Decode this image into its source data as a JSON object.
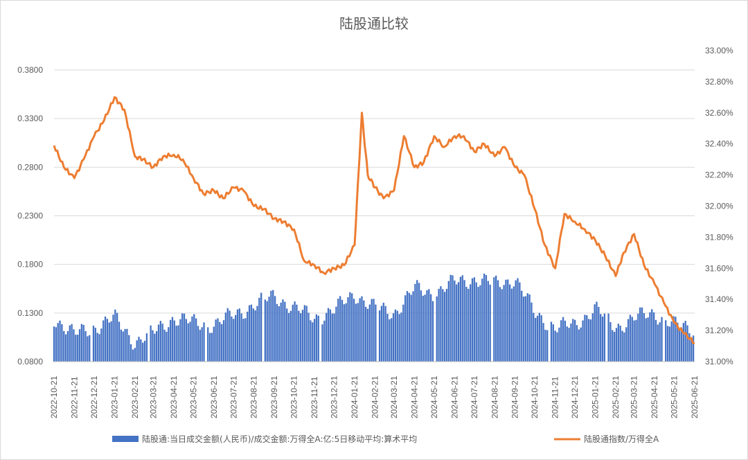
{
  "chart_data": {
    "type": "bar+line",
    "title": "陆股通比较",
    "x_tick_labels": [
      "2022-10-21",
      "2022-11-21",
      "2022-12-21",
      "2023-01-21",
      "2023-02-21",
      "2023-03-21",
      "2023-04-21",
      "2023-05-21",
      "2023-06-21",
      "2023-07-21",
      "2023-08-21",
      "2023-09-21",
      "2023-10-21",
      "2023-11-21",
      "2023-12-21",
      "2024-01-21",
      "2024-02-21",
      "2024-03-21",
      "2024-04-21",
      "2024-05-21",
      "2024-06-21",
      "2024-07-21",
      "2024-08-21",
      "2024-09-21",
      "2024-10-21",
      "2024-11-21",
      "2024-12-21",
      "2025-01-21",
      "2025-02-21",
      "2025-03-21",
      "2025-04-21",
      "2025-05-21",
      "2025-06-21"
    ],
    "y_left": {
      "min": 0.08,
      "max": 0.38,
      "tick_labels": [
        "0.0800",
        "0.1300",
        "0.1800",
        "0.2300",
        "0.2800",
        "0.3300",
        "0.3800"
      ]
    },
    "y_right": {
      "min": 31.0,
      "max": 33.0,
      "tick_labels": [
        "31.00%",
        "31.20%",
        "31.40%",
        "31.60%",
        "31.80%",
        "32.00%",
        "32.20%",
        "32.40%",
        "32.60%",
        "32.80%",
        "33.00%"
      ]
    },
    "colors": {
      "bar": "#4472c4",
      "line": "#ed7d31"
    },
    "legend": {
      "position": "bottom"
    },
    "grid": "horizontal",
    "series": [
      {
        "name": "陆股通:当日成交金额(人民币)/成交金额:万得全A:亿:5日移动平均:算术平均",
        "kind": "bar",
        "axis": "left",
        "unit_note": "approx monthly-sampled values",
        "x": [
          "2022-10-21",
          "2022-11-21",
          "2022-12-21",
          "2023-01-21",
          "2023-02-21",
          "2023-03-21",
          "2023-04-21",
          "2023-05-21",
          "2023-06-21",
          "2023-07-21",
          "2023-08-21",
          "2023-09-21",
          "2023-10-21",
          "2023-11-21",
          "2023-12-21",
          "2024-01-21",
          "2024-02-21",
          "2024-03-21",
          "2024-04-21",
          "2024-05-21",
          "2024-06-21",
          "2024-07-21",
          "2024-08-21",
          "2024-09-21",
          "2024-10-21",
          "2024-11-21",
          "2024-12-21",
          "2025-01-21",
          "2025-02-21",
          "2025-03-21",
          "2025-04-21",
          "2025-05-21",
          "2025-06-21"
        ],
        "values": [
          0.125,
          0.108,
          0.115,
          0.125,
          0.1,
          0.11,
          0.125,
          0.12,
          0.118,
          0.128,
          0.138,
          0.148,
          0.135,
          0.125,
          0.133,
          0.15,
          0.135,
          0.13,
          0.155,
          0.15,
          0.162,
          0.165,
          0.16,
          0.165,
          0.13,
          0.115,
          0.118,
          0.135,
          0.115,
          0.125,
          0.13,
          0.118,
          0.112
        ]
      },
      {
        "name": "陆股通指数/万得全A",
        "kind": "line",
        "axis": "right",
        "x": [
          "2022-10-21",
          "2022-11-05",
          "2022-11-21",
          "2022-12-05",
          "2022-12-21",
          "2023-01-05",
          "2023-01-21",
          "2023-02-05",
          "2023-02-21",
          "2023-03-05",
          "2023-03-21",
          "2023-04-05",
          "2023-04-21",
          "2023-05-05",
          "2023-05-21",
          "2023-06-05",
          "2023-06-21",
          "2023-07-05",
          "2023-07-21",
          "2023-08-05",
          "2023-08-21",
          "2023-09-05",
          "2023-09-21",
          "2023-10-05",
          "2023-10-21",
          "2023-11-05",
          "2023-11-21",
          "2023-12-05",
          "2023-12-21",
          "2024-01-05",
          "2024-01-21",
          "2024-02-01",
          "2024-02-10",
          "2024-02-21",
          "2024-03-05",
          "2024-03-21",
          "2024-04-05",
          "2024-04-21",
          "2024-05-05",
          "2024-05-21",
          "2024-06-05",
          "2024-06-21",
          "2024-07-05",
          "2024-07-21",
          "2024-08-05",
          "2024-08-21",
          "2024-09-05",
          "2024-09-21",
          "2024-10-05",
          "2024-10-21",
          "2024-11-05",
          "2024-11-21",
          "2024-12-05",
          "2024-12-21",
          "2025-01-05",
          "2025-01-21",
          "2025-02-05",
          "2025-02-21",
          "2025-03-05",
          "2025-03-21",
          "2025-04-05",
          "2025-04-21",
          "2025-05-05",
          "2025-05-21",
          "2025-06-05",
          "2025-06-21"
        ],
        "values": [
          32.39,
          32.25,
          32.18,
          32.3,
          32.45,
          32.55,
          32.7,
          32.62,
          32.32,
          32.3,
          32.25,
          32.32,
          32.33,
          32.3,
          32.18,
          32.08,
          32.1,
          32.05,
          32.12,
          32.1,
          32.0,
          31.98,
          31.92,
          31.9,
          31.85,
          31.65,
          31.62,
          31.57,
          31.6,
          31.62,
          31.75,
          32.6,
          32.2,
          32.12,
          32.05,
          32.1,
          32.45,
          32.25,
          32.28,
          32.45,
          32.38,
          32.45,
          32.45,
          32.35,
          32.4,
          32.32,
          32.38,
          32.25,
          32.2,
          31.98,
          31.75,
          31.6,
          31.95,
          31.9,
          31.85,
          31.78,
          31.68,
          31.55,
          31.7,
          31.82,
          31.62,
          31.5,
          31.38,
          31.25,
          31.18,
          31.12
        ]
      }
    ]
  }
}
